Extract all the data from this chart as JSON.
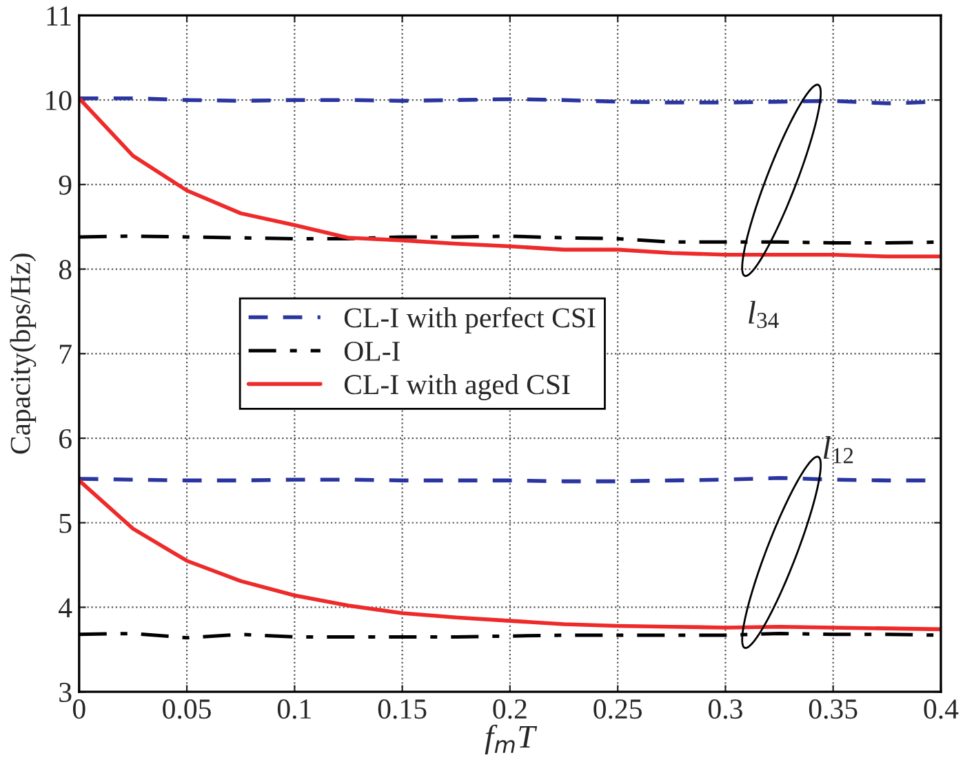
{
  "chart_data": {
    "type": "line",
    "xlabel": "f$_{m}$T",
    "ylabel": "Capacity(bps/Hz)",
    "x": [
      0,
      0.025,
      0.05,
      0.075,
      0.1,
      0.125,
      0.15,
      0.175,
      0.2,
      0.225,
      0.25,
      0.275,
      0.3,
      0.325,
      0.35,
      0.375,
      0.4
    ],
    "series": [
      {
        "name": "CL-I with perfect CSI",
        "color": "#2b35a0",
        "line_style": "dashed",
        "values": [
          10.02,
          10.02,
          10.0,
          9.99,
          10.0,
          10.0,
          9.99,
          10.0,
          10.01,
          10.0,
          9.98,
          9.97,
          9.97,
          9.98,
          9.99,
          9.96,
          9.98
        ]
      },
      {
        "name": "OL-I",
        "color": "#000000",
        "line_style": "dashdot",
        "values": [
          8.38,
          8.39,
          8.38,
          8.37,
          8.36,
          8.36,
          8.38,
          8.38,
          8.39,
          8.37,
          8.36,
          8.32,
          8.32,
          8.32,
          8.31,
          8.31,
          8.32
        ]
      },
      {
        "name": "CL-I with aged CSI",
        "color": "#ee2a2a",
        "line_style": "solid",
        "values": [
          10.02,
          9.34,
          8.93,
          8.66,
          8.52,
          8.37,
          8.34,
          8.3,
          8.27,
          8.23,
          8.23,
          8.19,
          8.17,
          8.17,
          8.17,
          8.15,
          8.15
        ]
      },
      {
        "color": "#2b35a0",
        "line_style": "dashed",
        "values": [
          5.52,
          5.51,
          5.5,
          5.5,
          5.51,
          5.51,
          5.5,
          5.5,
          5.5,
          5.49,
          5.49,
          5.5,
          5.51,
          5.53,
          5.51,
          5.5,
          5.5
        ]
      },
      {
        "color": "#000000",
        "line_style": "dashdot",
        "values": [
          3.68,
          3.69,
          3.64,
          3.68,
          3.65,
          3.65,
          3.65,
          3.65,
          3.66,
          3.67,
          3.67,
          3.67,
          3.67,
          3.69,
          3.68,
          3.68,
          3.67
        ]
      },
      {
        "color": "#ee2a2a",
        "line_style": "solid",
        "values": [
          5.5,
          4.93,
          4.55,
          4.31,
          4.14,
          4.02,
          3.93,
          3.88,
          3.84,
          3.8,
          3.78,
          3.77,
          3.76,
          3.77,
          3.76,
          3.75,
          3.74
        ]
      }
    ],
    "annotations": [
      "l$_{34}$",
      "l$_{12}$"
    ],
    "xlim": [
      0,
      0.4
    ],
    "xticks": [
      0,
      0.05,
      0.1,
      0.15,
      0.2,
      0.25,
      0.3,
      0.35,
      0.4
    ],
    "ylim": [
      3,
      11
    ],
    "yticks": [
      3,
      4,
      5,
      6,
      7,
      8,
      9,
      10,
      11
    ],
    "grid": true,
    "legend": "center left",
    "marker": "none"
  }
}
